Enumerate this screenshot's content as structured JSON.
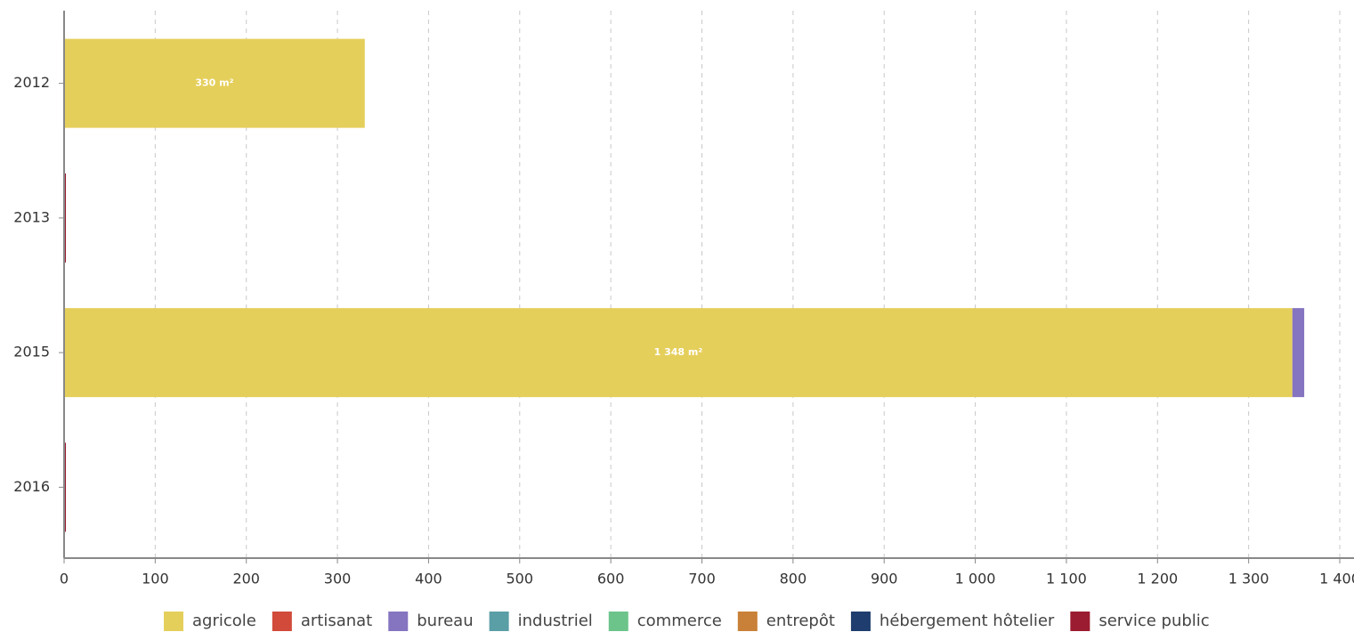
{
  "chart_data": {
    "type": "stacked-barh",
    "categories": [
      "2012",
      "2013",
      "2015",
      "2016"
    ],
    "series": [
      {
        "name": "agricole",
        "color": "#e5cf5b",
        "values": [
          330,
          0,
          1348,
          0
        ],
        "value_labels": [
          "330 m²",
          null,
          "1 348 m²",
          null
        ]
      },
      {
        "name": "artisanat",
        "color": "#d14a3a",
        "values": [
          0,
          0,
          0,
          0
        ]
      },
      {
        "name": "bureau",
        "color": "#8574c0",
        "values": [
          0,
          0,
          13,
          0
        ]
      },
      {
        "name": "industriel",
        "color": "#5a9ea6",
        "values": [
          0,
          0,
          0,
          0
        ]
      },
      {
        "name": "commerce",
        "color": "#6cc48a",
        "values": [
          0,
          0,
          0,
          0
        ]
      },
      {
        "name": "entrepôt",
        "color": "#c98038",
        "values": [
          0,
          0,
          0,
          0
        ]
      },
      {
        "name": "hébergement hôtelier",
        "color": "#1f3d6e",
        "values": [
          0,
          0,
          0,
          0
        ]
      },
      {
        "name": "service public",
        "color": "#9b1b30",
        "values": [
          0,
          2,
          0,
          2
        ]
      }
    ],
    "xlim": [
      0,
      1400
    ],
    "xticks": [
      0,
      100,
      200,
      300,
      400,
      500,
      600,
      700,
      800,
      900,
      {
        "value": 1000,
        "label": "1 000"
      },
      {
        "value": 1100,
        "label": "1 100"
      },
      {
        "value": 1200,
        "label": "1 200"
      },
      {
        "value": 1300,
        "label": "1 300"
      },
      {
        "value": 1400,
        "label": "1 400"
      }
    ],
    "grid": true
  }
}
